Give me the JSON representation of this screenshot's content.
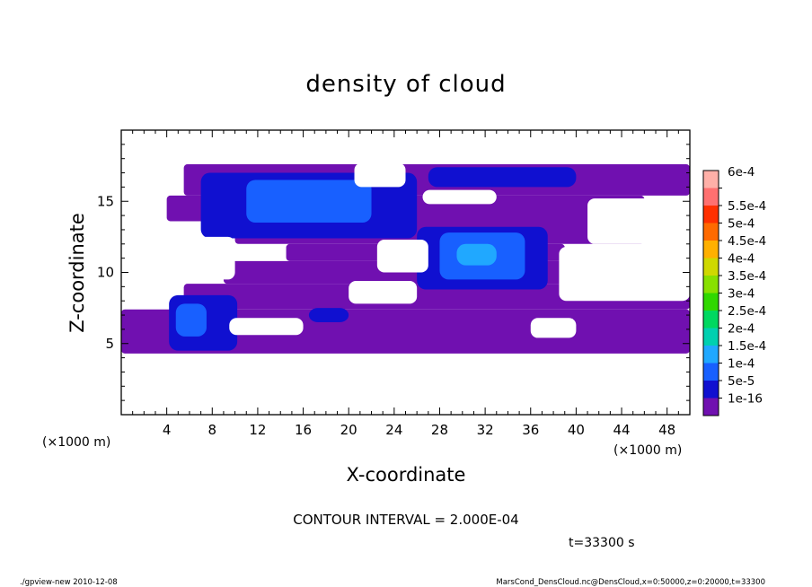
{
  "chart_data": {
    "type": "heatmap",
    "title": "density of cloud",
    "xlabel": "X-coordinate",
    "ylabel": "Z-coordinate",
    "x_unit_left": "(×1000 m)",
    "x_unit_right": "(×1000 m)",
    "xlim": [
      0,
      50
    ],
    "ylim": [
      0,
      20
    ],
    "x_ticks": [
      4,
      8,
      12,
      16,
      20,
      24,
      28,
      32,
      36,
      40,
      44,
      48
    ],
    "y_ticks": [
      5,
      10,
      15
    ],
    "x_tick_labels": [
      "4",
      "8",
      "12",
      "16",
      "20",
      "24",
      "28",
      "32",
      "36",
      "40",
      "44",
      "48"
    ],
    "y_tick_labels": [
      "5",
      "10",
      "15"
    ],
    "colorbar": {
      "labels": [
        "6e-4",
        "5.5e-4",
        "5e-4",
        "4.5e-4",
        "4e-4",
        "3.5e-4",
        "3e-4",
        "2.5e-4",
        "2e-4",
        "1.5e-4",
        "1e-4",
        "5e-5",
        "1e-16"
      ],
      "colors": [
        "#ffb0a8",
        "#ff7070",
        "#ff3000",
        "#ff6a00",
        "#ffb000",
        "#cfd800",
        "#88e000",
        "#30d800",
        "#00d860",
        "#00d0b0",
        "#20a8ff",
        "#1860ff",
        "#1010d0",
        "#7010b0"
      ]
    },
    "regions": [
      {
        "level": 0,
        "x": [
          0.0,
          50.0
        ],
        "z": [
          4.3,
          7.4
        ]
      },
      {
        "level": 0,
        "x": [
          5.5,
          50.0
        ],
        "z": [
          7.4,
          9.2
        ]
      },
      {
        "level": 0,
        "x": [
          9.0,
          40.0
        ],
        "z": [
          9.2,
          10.8
        ]
      },
      {
        "level": 0,
        "x": [
          14.5,
          39.0
        ],
        "z": [
          10.8,
          12.0
        ]
      },
      {
        "level": 0,
        "x": [
          10.0,
          46.0
        ],
        "z": [
          12.0,
          13.6
        ]
      },
      {
        "level": 0,
        "x": [
          4.0,
          46.0
        ],
        "z": [
          13.6,
          15.4
        ]
      },
      {
        "level": 0,
        "x": [
          5.5,
          50.0
        ],
        "z": [
          15.4,
          17.6
        ]
      },
      {
        "level": 1,
        "x": [
          4.2,
          10.2
        ],
        "z": [
          4.5,
          8.4
        ]
      },
      {
        "level": 2,
        "x": [
          4.8,
          7.5
        ],
        "z": [
          5.5,
          7.8
        ]
      },
      {
        "level": 1,
        "x": [
          16.5,
          20.0
        ],
        "z": [
          6.5,
          7.5
        ]
      },
      {
        "level": 1,
        "x": [
          26.0,
          37.5
        ],
        "z": [
          8.8,
          13.2
        ]
      },
      {
        "level": 2,
        "x": [
          28.0,
          35.5
        ],
        "z": [
          9.5,
          12.8
        ]
      },
      {
        "level": 3,
        "x": [
          29.5,
          33.0
        ],
        "z": [
          10.5,
          12.0
        ]
      },
      {
        "level": 1,
        "x": [
          7.0,
          26.0
        ],
        "z": [
          12.4,
          17.0
        ]
      },
      {
        "level": 2,
        "x": [
          11.0,
          22.0
        ],
        "z": [
          13.5,
          16.5
        ]
      },
      {
        "level": 1,
        "x": [
          27.0,
          40.0
        ],
        "z": [
          16.0,
          17.4
        ]
      }
    ],
    "gaps": [
      {
        "x": [
          4.0,
          10.0
        ],
        "z": [
          9.5,
          12.5
        ]
      },
      {
        "x": [
          20.0,
          26.0
        ],
        "z": [
          7.8,
          9.4
        ]
      },
      {
        "x": [
          22.5,
          27.0
        ],
        "z": [
          10.0,
          12.3
        ]
      },
      {
        "x": [
          26.5,
          33.0
        ],
        "z": [
          14.8,
          15.8
        ]
      },
      {
        "x": [
          38.5,
          50.0
        ],
        "z": [
          8.0,
          11.8
        ]
      },
      {
        "x": [
          41.0,
          50.0
        ],
        "z": [
          12.0,
          15.2
        ]
      },
      {
        "x": [
          9.5,
          16.0
        ],
        "z": [
          5.6,
          6.8
        ]
      },
      {
        "x": [
          36.0,
          40.0
        ],
        "z": [
          5.4,
          6.8
        ]
      },
      {
        "x": [
          20.5,
          25.0
        ],
        "z": [
          16.0,
          17.7
        ]
      }
    ]
  },
  "annotations": {
    "contour_interval": "CONTOUR INTERVAL = 2.000E-04",
    "time": "t=33300 s",
    "footer_left": "./gpview-new   2010-12-08",
    "footer_right": "MarsCond_DensCloud.nc@DensCloud,x=0:50000,z=0:20000,t=33300"
  }
}
